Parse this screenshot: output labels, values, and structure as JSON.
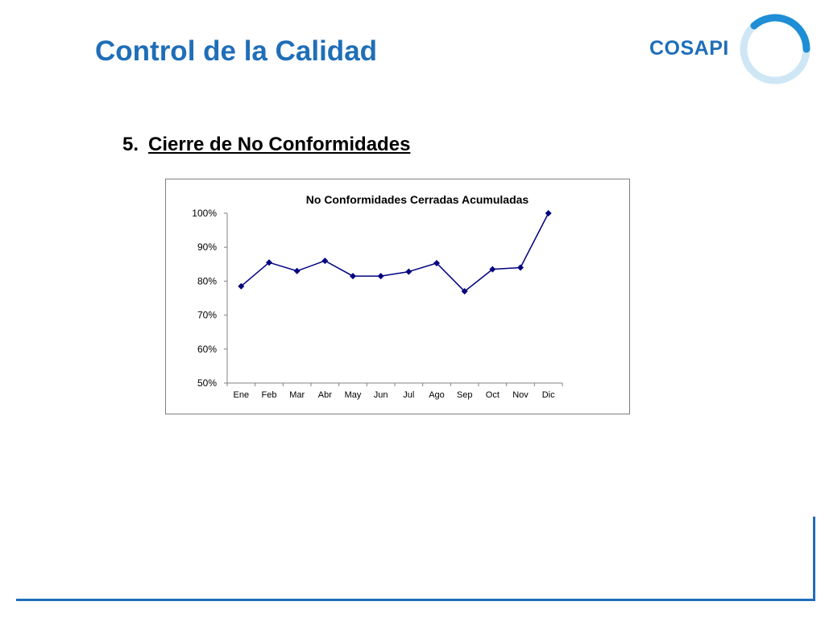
{
  "slide": {
    "title": "Control de la Calidad",
    "logo_text": "COSAPI",
    "section_number": "5.",
    "section_title": "Cierre de No Conformidades"
  },
  "colors": {
    "brand_blue": "#1f6eb8",
    "series_color": "#000080",
    "logo_ring_light": "#cfe6f5",
    "logo_ring_dark": "#1f8ed6"
  },
  "chart_data": {
    "type": "line",
    "title": "No Conformidades Cerradas Acumuladas",
    "categories": [
      "Ene",
      "Feb",
      "Mar",
      "Abr",
      "May",
      "Jun",
      "Jul",
      "Ago",
      "Sep",
      "Oct",
      "Nov",
      "Dic"
    ],
    "series": [
      {
        "values": [
          78.5,
          85.5,
          83,
          86,
          81.5,
          81.5,
          82.8,
          85.3,
          77,
          83.5,
          84,
          100
        ]
      }
    ],
    "ylim": [
      50,
      100
    ],
    "yticks": [
      "50%",
      "60%",
      "70%",
      "80%",
      "90%",
      "100%"
    ],
    "xlabel": "",
    "ylabel": "",
    "grid": false,
    "legend": "none",
    "marker": "diamond"
  }
}
